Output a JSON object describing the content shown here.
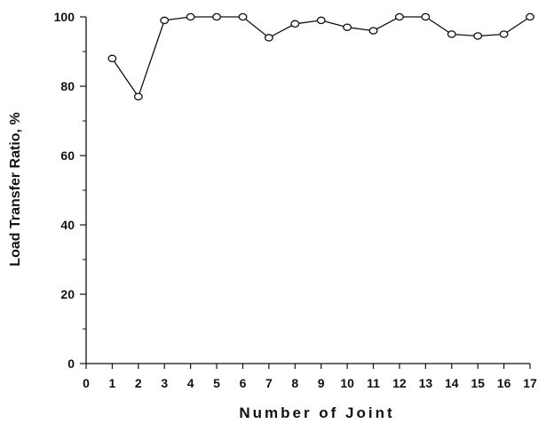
{
  "chart_data": {
    "type": "line",
    "title": "",
    "xlabel": "Number of Joint",
    "ylabel": "Load Transfer Ratio, %",
    "xlim": [
      0,
      17
    ],
    "ylim": [
      0,
      100
    ],
    "x_ticks": [
      "0",
      "1",
      "2",
      "3",
      "4",
      "5",
      "6",
      "7",
      "8",
      "9",
      "10",
      "11",
      "12",
      "13",
      "14",
      "15",
      "16",
      "17"
    ],
    "y_ticks": [
      "0",
      "20",
      "40",
      "60",
      "80",
      "100"
    ],
    "grid": false,
    "legend": "none",
    "marker": "open-circle",
    "line_color": "#111111",
    "series": [
      {
        "x": [
          1,
          2,
          3,
          4,
          5,
          6,
          7,
          8,
          9,
          10,
          11,
          12,
          13,
          14,
          15,
          16,
          17
        ],
        "values": [
          88,
          77,
          99,
          100,
          100,
          100,
          94,
          98,
          99,
          97,
          96,
          100,
          100,
          95,
          94.5,
          95,
          100
        ]
      }
    ]
  }
}
